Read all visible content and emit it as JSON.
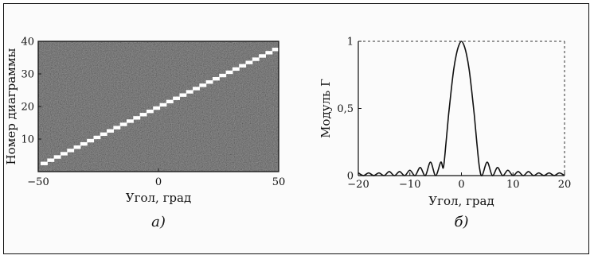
{
  "chart_data": [
    {
      "type": "heatmap",
      "panel_label": "а)",
      "xlabel": "Угол, град",
      "ylabel": "Номер диаграммы",
      "xlim": [
        -50,
        50
      ],
      "ylim": [
        0,
        40
      ],
      "x_ticks": [
        -50,
        0,
        50
      ],
      "y_ticks": [
        10,
        20,
        30,
        40
      ],
      "grid": false,
      "colors": {
        "background": "#4a4a4a",
        "stripe": "#ffffff"
      },
      "stripe": {
        "x_start": -49,
        "y_start": 2,
        "x_end": 50,
        "y_end": 38
      }
    },
    {
      "type": "line",
      "panel_label": "б)",
      "xlabel": "Угол, град",
      "ylabel": "Модуль Г",
      "xlim": [
        -20,
        20
      ],
      "ylim": [
        0,
        1
      ],
      "x_ticks": [
        -20,
        -10,
        0,
        10,
        20
      ],
      "y_ticks": [
        0,
        0.5,
        1
      ],
      "y_tick_labels": [
        "0",
        "0,5",
        "1"
      ],
      "grid": false,
      "series": [
        {
          "x": [
            -20,
            -19,
            -18,
            -17,
            -16,
            -15,
            -14,
            -13,
            -12,
            -11,
            -10,
            -9,
            -8,
            -7,
            -6,
            -5,
            -4,
            -3.5,
            -3,
            -2.5,
            -2,
            -1.5,
            -1,
            -0.5,
            0,
            0.5,
            1,
            1.5,
            2,
            2.5,
            3,
            3.5,
            4,
            5,
            6,
            7,
            8,
            9,
            10,
            11,
            12,
            13,
            14,
            15,
            16,
            17,
            18,
            19,
            20
          ],
          "y": [
            0.02,
            0.0,
            0.02,
            0.0,
            0.02,
            0.0,
            0.03,
            0.0,
            0.03,
            0.0,
            0.04,
            0.0,
            0.06,
            0.0,
            0.1,
            0.0,
            0.1,
            0.06,
            0.24,
            0.45,
            0.63,
            0.79,
            0.9,
            0.97,
            1.0,
            0.97,
            0.9,
            0.79,
            0.63,
            0.45,
            0.24,
            0.06,
            0.0,
            0.1,
            0.0,
            0.06,
            0.0,
            0.04,
            0.0,
            0.03,
            0.0,
            0.03,
            0.0,
            0.02,
            0.0,
            0.02,
            0.0,
            0.02,
            0.0
          ]
        }
      ]
    }
  ]
}
